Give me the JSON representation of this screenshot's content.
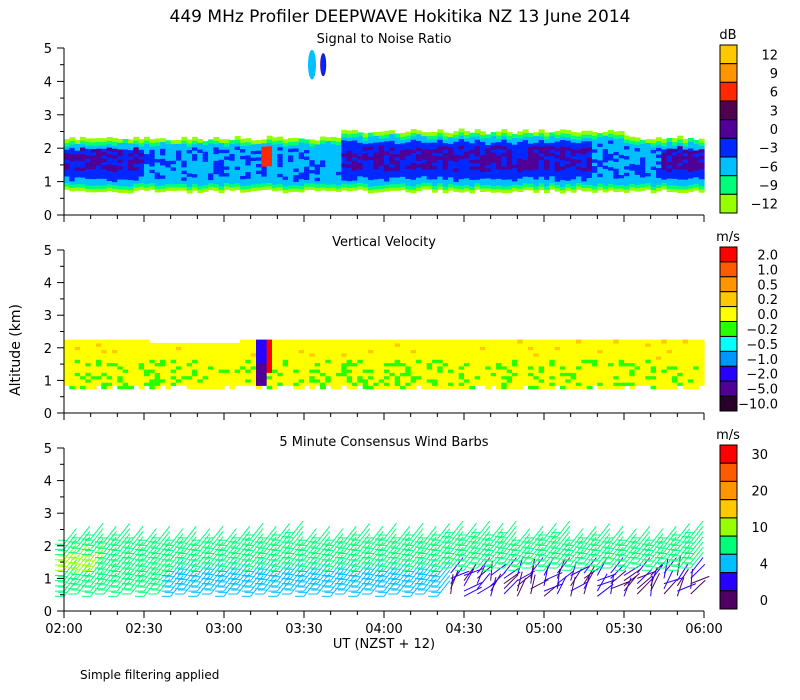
{
  "chart_data": {
    "type": "heatmap",
    "title": "449 MHz Profiler DEEPWAVE Hokitika NZ 13 June 2014",
    "xlabel": "UT  (NZST + 12)",
    "ylabel": "Altitude (km)",
    "xticks": [
      "02:00",
      "02:30",
      "03:00",
      "03:30",
      "04:00",
      "04:30",
      "05:00",
      "05:30",
      "06:00"
    ],
    "xlim_hours": [
      2.0,
      6.0
    ],
    "yticks": [
      "0",
      "1",
      "2",
      "3",
      "4",
      "5"
    ],
    "ylim": [
      0,
      5
    ],
    "footnote": "Simple filtering applied",
    "panels": [
      {
        "name": "snr",
        "title": "Signal to Noise Ratio",
        "units": "dB",
        "colorbar": {
          "labels": [
            "12",
            "9",
            "6",
            "3",
            "0",
            "−3",
            "−6",
            "−9",
            "−12"
          ],
          "colors": [
            "#ffc800",
            "#ff9600",
            "#ff2800",
            "#500050",
            "#500096",
            "#0028ff",
            "#00c0ff",
            "#00ff78",
            "#96ff00"
          ]
        },
        "echo_layer_km": {
          "bottom": 0.75,
          "top": 2.25
        },
        "features": [
          {
            "time_hours": 3.25,
            "alt_km": 1.75,
            "value_db": 6
          },
          {
            "time_hours": 3.62,
            "alt_km": 4.5,
            "value_db": 0
          }
        ]
      },
      {
        "name": "vertical-velocity",
        "title": "Vertical Velocity",
        "units": "m/s",
        "colorbar": {
          "labels": [
            "2.0",
            "1.0",
            "0.5",
            "0.2",
            "0.0",
            "−0.2",
            "−0.5",
            "−1.0",
            "−2.0",
            "−5.0",
            "−10.0"
          ],
          "colors": [
            "#ff0000",
            "#ff5a00",
            "#ff9600",
            "#ffc800",
            "#ffff00",
            "#28ff00",
            "#00ffff",
            "#0096ff",
            "#2800ff",
            "#500096",
            "#280028"
          ]
        },
        "data_layer_km": {
          "bottom": 0.75,
          "top": 2.25
        },
        "dominant_value_ms": 0.0
      },
      {
        "name": "wind-barbs",
        "title": "5 Minute Consensus Wind Barbs",
        "units": "m/s",
        "colorbar": {
          "labels": [
            "30",
            "",
            "20",
            "",
            "10",
            "",
            "4",
            "",
            "0"
          ],
          "colors": [
            "#ff0000",
            "#ff5a00",
            "#ff9600",
            "#ffc800",
            "#96ff00",
            "#00ff78",
            "#00c0ff",
            "#2800ff",
            "#500064"
          ]
        },
        "data_layer_km": {
          "bottom": 0.4,
          "top": 2.3
        },
        "interval_minutes": 5
      }
    ]
  }
}
